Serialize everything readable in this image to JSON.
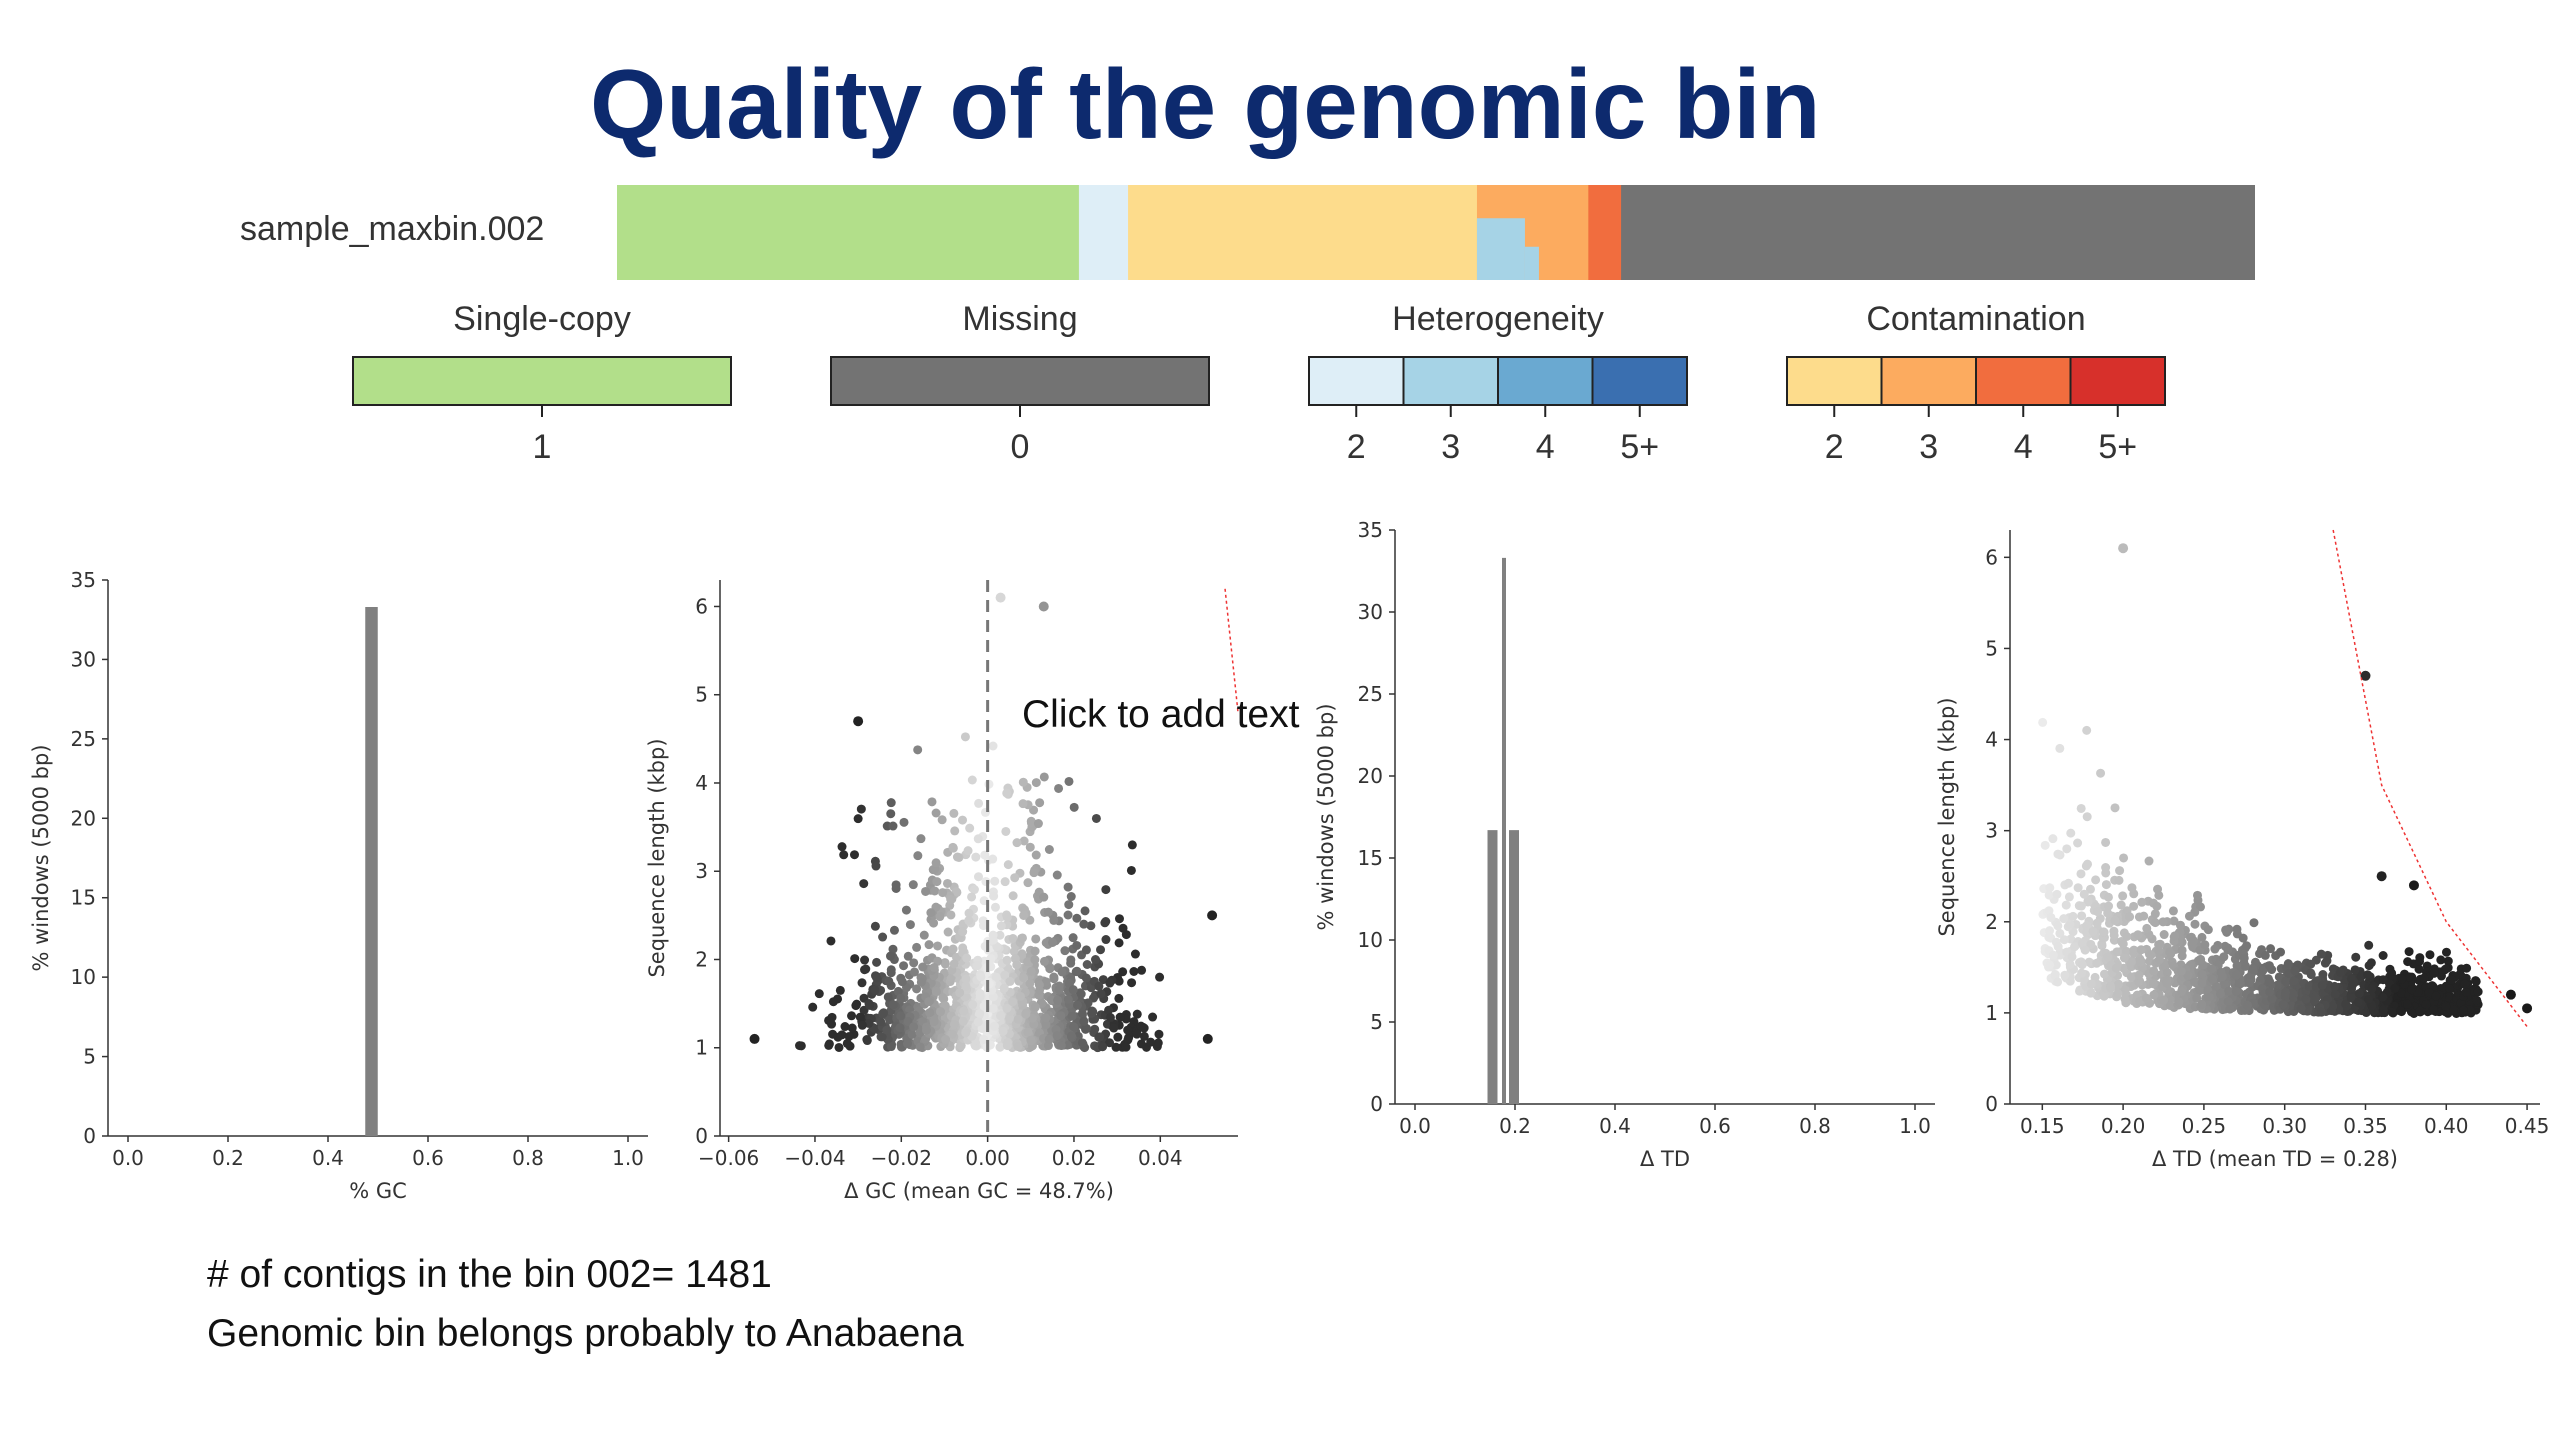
{
  "slide": {
    "title": "Quality of the genomic bin",
    "footer_line1": "# of contigs in the bin 002= 1481",
    "footer_line2": "Genomic bin belongs probably to Anabaena",
    "placeholder": "Click to add text"
  },
  "colors": {
    "title": "#0d2a6e",
    "single_copy": "#b2df8a",
    "missing": "#737373",
    "het2": "#deeef7",
    "het3": "#a6d3e6",
    "het4": "#6aa9d1",
    "het5plus": "#3a6fb0",
    "con2": "#fddc8c",
    "con3": "#fcab5f",
    "con4": "#f16d3e",
    "con5plus": "#d7302b",
    "bars": "#808080"
  },
  "chart_data": [
    {
      "type": "bar",
      "title": "",
      "row_label": "sample_maxbin.002",
      "stacked": true,
      "orientation": "horizontal",
      "segments": [
        {
          "name": "Single-copy 1",
          "value": 28.2,
          "color": "#b2df8a"
        },
        {
          "name": "Heterogeneity 2",
          "value": 3.0,
          "color": "#deeef7"
        },
        {
          "name": "Contamination 2",
          "value": 21.3,
          "color": "#fddc8c"
        },
        {
          "name": "Contamination 3 / Heterogeneity 3",
          "value": 6.8,
          "color": "#fcab5f"
        },
        {
          "name": "Contamination 4",
          "value": 2.0,
          "color": "#f16d3e"
        },
        {
          "name": "Missing 0",
          "value": 38.7,
          "color": "#737373"
        }
      ],
      "legends": [
        {
          "title": "Single-copy",
          "ticks": [
            "1"
          ],
          "colors": [
            "#b2df8a"
          ]
        },
        {
          "title": "Missing",
          "ticks": [
            "0"
          ],
          "colors": [
            "#737373"
          ]
        },
        {
          "title": "Heterogeneity",
          "ticks": [
            "2",
            "3",
            "4",
            "5+"
          ],
          "colors": [
            "#deeef7",
            "#a6d3e6",
            "#6aa9d1",
            "#3a6fb0"
          ]
        },
        {
          "title": "Contamination",
          "ticks": [
            "2",
            "3",
            "4",
            "5+"
          ],
          "colors": [
            "#fddc8c",
            "#fcab5f",
            "#f16d3e",
            "#d7302b"
          ]
        }
      ]
    },
    {
      "type": "bar",
      "xlabel": "% GC",
      "ylabel": "% windows (5000 bp)",
      "xlim": [
        -0.04,
        1.04
      ],
      "ylim": [
        0,
        35
      ],
      "xticks": [
        "0.0",
        "0.2",
        "0.4",
        "0.6",
        "0.8",
        "1.0"
      ],
      "yticks": [
        "0",
        "5",
        "10",
        "15",
        "20",
        "25",
        "30",
        "35"
      ],
      "bars": [
        {
          "x": 0.487,
          "width": 0.025,
          "value": 33.3
        }
      ]
    },
    {
      "type": "scatter",
      "xlabel": "Δ GC (mean GC = 48.7%)",
      "ylabel": "Sequence length (kbp)",
      "xlim": [
        -0.062,
        0.058
      ],
      "ylim": [
        0,
        6.3
      ],
      "xticks": [
        "−0.06",
        "−0.04",
        "−0.02",
        "0.00",
        "0.02",
        "0.04"
      ],
      "yticks": [
        "0",
        "1",
        "2",
        "3",
        "4",
        "5",
        "6"
      ],
      "points_summary": "≈1481 contigs, bulk in 1–2 kbp near ΔGC 0, greyscale by |ΔGC|",
      "outliers": [
        [
          -0.054,
          1.1
        ],
        [
          0.052,
          2.5
        ],
        [
          0.051,
          1.1
        ],
        [
          0.013,
          6.0
        ],
        [
          0.003,
          6.1
        ],
        [
          -0.03,
          4.7
        ]
      ],
      "vline_x": 0.0,
      "threshold_curve": [
        [
          0.055,
          6.2
        ],
        [
          0.058,
          4.8
        ]
      ]
    },
    {
      "type": "bar",
      "xlabel": "Δ TD",
      "ylabel": "% windows (5000 bp)",
      "xlim": [
        -0.04,
        1.04
      ],
      "ylim": [
        0,
        35
      ],
      "xticks": [
        "0.0",
        "0.2",
        "0.4",
        "0.6",
        "0.8",
        "1.0"
      ],
      "yticks": [
        "0",
        "5",
        "10",
        "15",
        "20",
        "25",
        "30",
        "35"
      ],
      "bars": [
        {
          "x": 0.155,
          "width": 0.02,
          "value": 16.7
        },
        {
          "x": 0.178,
          "width": 0.008,
          "value": 33.3
        },
        {
          "x": 0.198,
          "width": 0.02,
          "value": 16.7
        }
      ]
    },
    {
      "type": "scatter",
      "xlabel": "Δ TD (mean TD = 0.28)",
      "ylabel": "Sequence length (kbp)",
      "xlim": [
        0.13,
        0.458
      ],
      "ylim": [
        0,
        6.3
      ],
      "xticks": [
        "0.15",
        "0.20",
        "0.25",
        "0.30",
        "0.35",
        "0.40",
        "0.45"
      ],
      "yticks": [
        "0",
        "1",
        "2",
        "3",
        "4",
        "5",
        "6"
      ],
      "points_summary": "≈1481 contigs, decaying from upper-left to lower-right, greyscale by TD",
      "outliers": [
        [
          0.35,
          4.7
        ],
        [
          0.38,
          2.4
        ],
        [
          0.36,
          2.5
        ],
        [
          0.44,
          1.2
        ],
        [
          0.45,
          1.05
        ],
        [
          0.2,
          6.1
        ]
      ],
      "threshold_curve": [
        [
          0.33,
          6.3
        ],
        [
          0.36,
          3.5
        ],
        [
          0.4,
          2.0
        ],
        [
          0.45,
          0.85
        ]
      ]
    }
  ]
}
